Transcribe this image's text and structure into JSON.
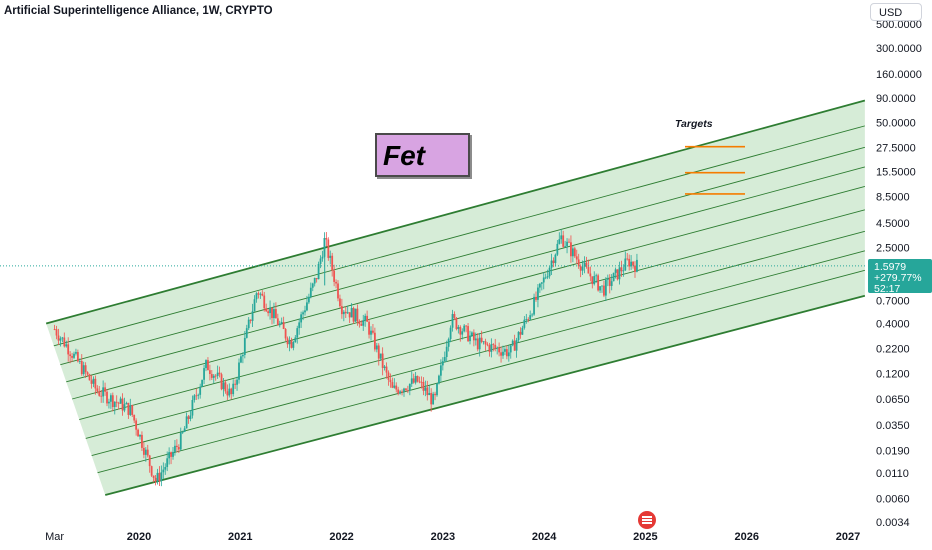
{
  "header": {
    "title": "Artificial Superintelligence Alliance, 1W, CRYPTO"
  },
  "price_scale": {
    "currency": "USD",
    "top_partial_label": "500.0000"
  },
  "annotations": {
    "main_label": "Fet",
    "targets_label": "Targets",
    "targets_color": "#f57c00",
    "main_label_bg": "#d8a4e2"
  },
  "last_price": {
    "price": "1.5979",
    "change": "+279.77%",
    "countdown": "52:17",
    "color": "#26a69a"
  },
  "colors": {
    "up": "#26a69a",
    "down": "#ef5350",
    "channel_line": "#2e7d32",
    "channel_fill": "#c8e6c9"
  },
  "chart_data": {
    "type": "candlestick",
    "title": "Artificial Superintelligence Alliance, 1W, CRYPTO",
    "y_scale": "log",
    "y_ticks": [
      "300.0000",
      "160.0000",
      "90.0000",
      "50.0000",
      "27.5000",
      "15.5000",
      "8.5000",
      "4.5000",
      "2.5000",
      "0.7000",
      "0.4000",
      "0.2200",
      "0.1200",
      "0.0650",
      "0.0350",
      "0.0190",
      "0.0110",
      "0.0060",
      "0.0034"
    ],
    "x_ticks": [
      "Mar",
      "2020",
      "2021",
      "2022",
      "2023",
      "2024",
      "2025",
      "2026",
      "2027"
    ],
    "last_price": 1.5979,
    "channel": {
      "description": "rising log-regression channel",
      "lower_start": {
        "date": "2019-09",
        "price": 0.0065
      },
      "lower_end": {
        "date": "2027-03",
        "price": 0.78
      },
      "upper_start": {
        "date": "2019-02",
        "price": 0.4
      },
      "upper_end": {
        "date": "2027-03",
        "price": 85
      }
    },
    "targets": [
      28,
      15,
      9
    ],
    "price_path": [
      {
        "date": "2019-03",
        "price": 0.35
      },
      {
        "date": "2019-05",
        "price": 0.2
      },
      {
        "date": "2019-08",
        "price": 0.08
      },
      {
        "date": "2019-12",
        "price": 0.05
      },
      {
        "date": "2020-03",
        "price": 0.009
      },
      {
        "date": "2020-06",
        "price": 0.025
      },
      {
        "date": "2020-09",
        "price": 0.15
      },
      {
        "date": "2020-12",
        "price": 0.07
      },
      {
        "date": "2021-03",
        "price": 0.9
      },
      {
        "date": "2021-07",
        "price": 0.25
      },
      {
        "date": "2021-10",
        "price": 1.2
      },
      {
        "date": "2021-11",
        "price": 3.0
      },
      {
        "date": "2022-01",
        "price": 0.6
      },
      {
        "date": "2022-04",
        "price": 0.4
      },
      {
        "date": "2022-07",
        "price": 0.08
      },
      {
        "date": "2022-10",
        "price": 0.1
      },
      {
        "date": "2022-12",
        "price": 0.06
      },
      {
        "date": "2023-02",
        "price": 0.45
      },
      {
        "date": "2023-05",
        "price": 0.25
      },
      {
        "date": "2023-09",
        "price": 0.2
      },
      {
        "date": "2023-12",
        "price": 0.7
      },
      {
        "date": "2024-03",
        "price": 3.2
      },
      {
        "date": "2024-06",
        "price": 1.4
      },
      {
        "date": "2024-08",
        "price": 0.9
      },
      {
        "date": "2024-11",
        "price": 1.8
      },
      {
        "date": "2024-12",
        "price": 1.6
      }
    ]
  }
}
